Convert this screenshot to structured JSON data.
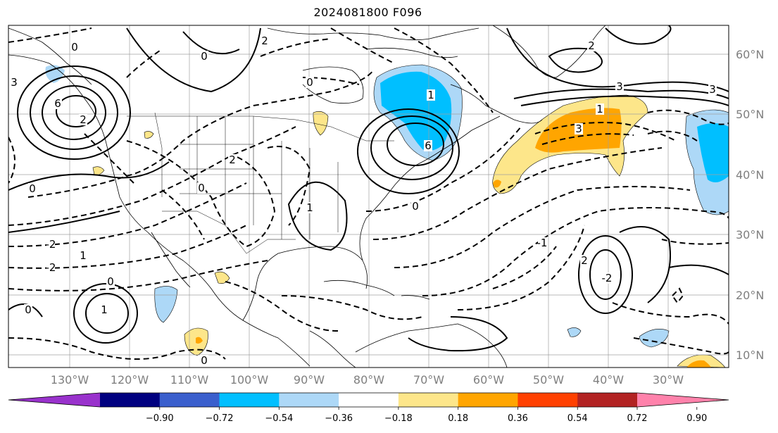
{
  "title": "2024081800 F096",
  "lon_labels": [
    "130°W",
    "120°W",
    "110°W",
    "100°W",
    "90°W",
    "80°W",
    "70°W",
    "60°W",
    "50°W",
    "40°W",
    "30°W"
  ],
  "lat_labels": [
    "60°N",
    "50°N",
    "40°N",
    "30°N",
    "20°N",
    "10°N"
  ],
  "colorbar": {
    "colors": [
      "#9932cc",
      "#000080",
      "#3a5fcd",
      "#00bfff",
      "#add8f7",
      "#ffffff",
      "#fde68a",
      "#ffa500",
      "#ff4000",
      "#b22222",
      "#ff82ab"
    ],
    "ticks": [
      "−0.90",
      "−0.72",
      "−0.54",
      "−0.36",
      "−0.18",
      "0.18",
      "0.36",
      "0.54",
      "0.72",
      "0.90"
    ]
  },
  "contour_labels": [
    {
      "text": "3"
    },
    {
      "text": "6"
    },
    {
      "text": "2"
    },
    {
      "text": "0"
    },
    {
      "text": "0"
    },
    {
      "text": "2"
    },
    {
      "text": "3"
    },
    {
      "text": "1"
    },
    {
      "text": "0"
    },
    {
      "text": "2"
    },
    {
      "text": "1"
    },
    {
      "text": "3"
    },
    {
      "text": "3"
    },
    {
      "text": "0"
    },
    {
      "text": "1"
    },
    {
      "text": "0"
    },
    {
      "text": "2"
    },
    {
      "text": "0"
    },
    {
      "text": "-1"
    },
    {
      "text": "-2"
    },
    {
      "text": "-2"
    },
    {
      "text": "0"
    },
    {
      "text": "1"
    },
    {
      "text": "2"
    },
    {
      "text": "0"
    },
    {
      "text": "1"
    },
    {
      "text": "-2"
    },
    {
      "text": "0"
    },
    {
      "text": "6"
    }
  ]
}
